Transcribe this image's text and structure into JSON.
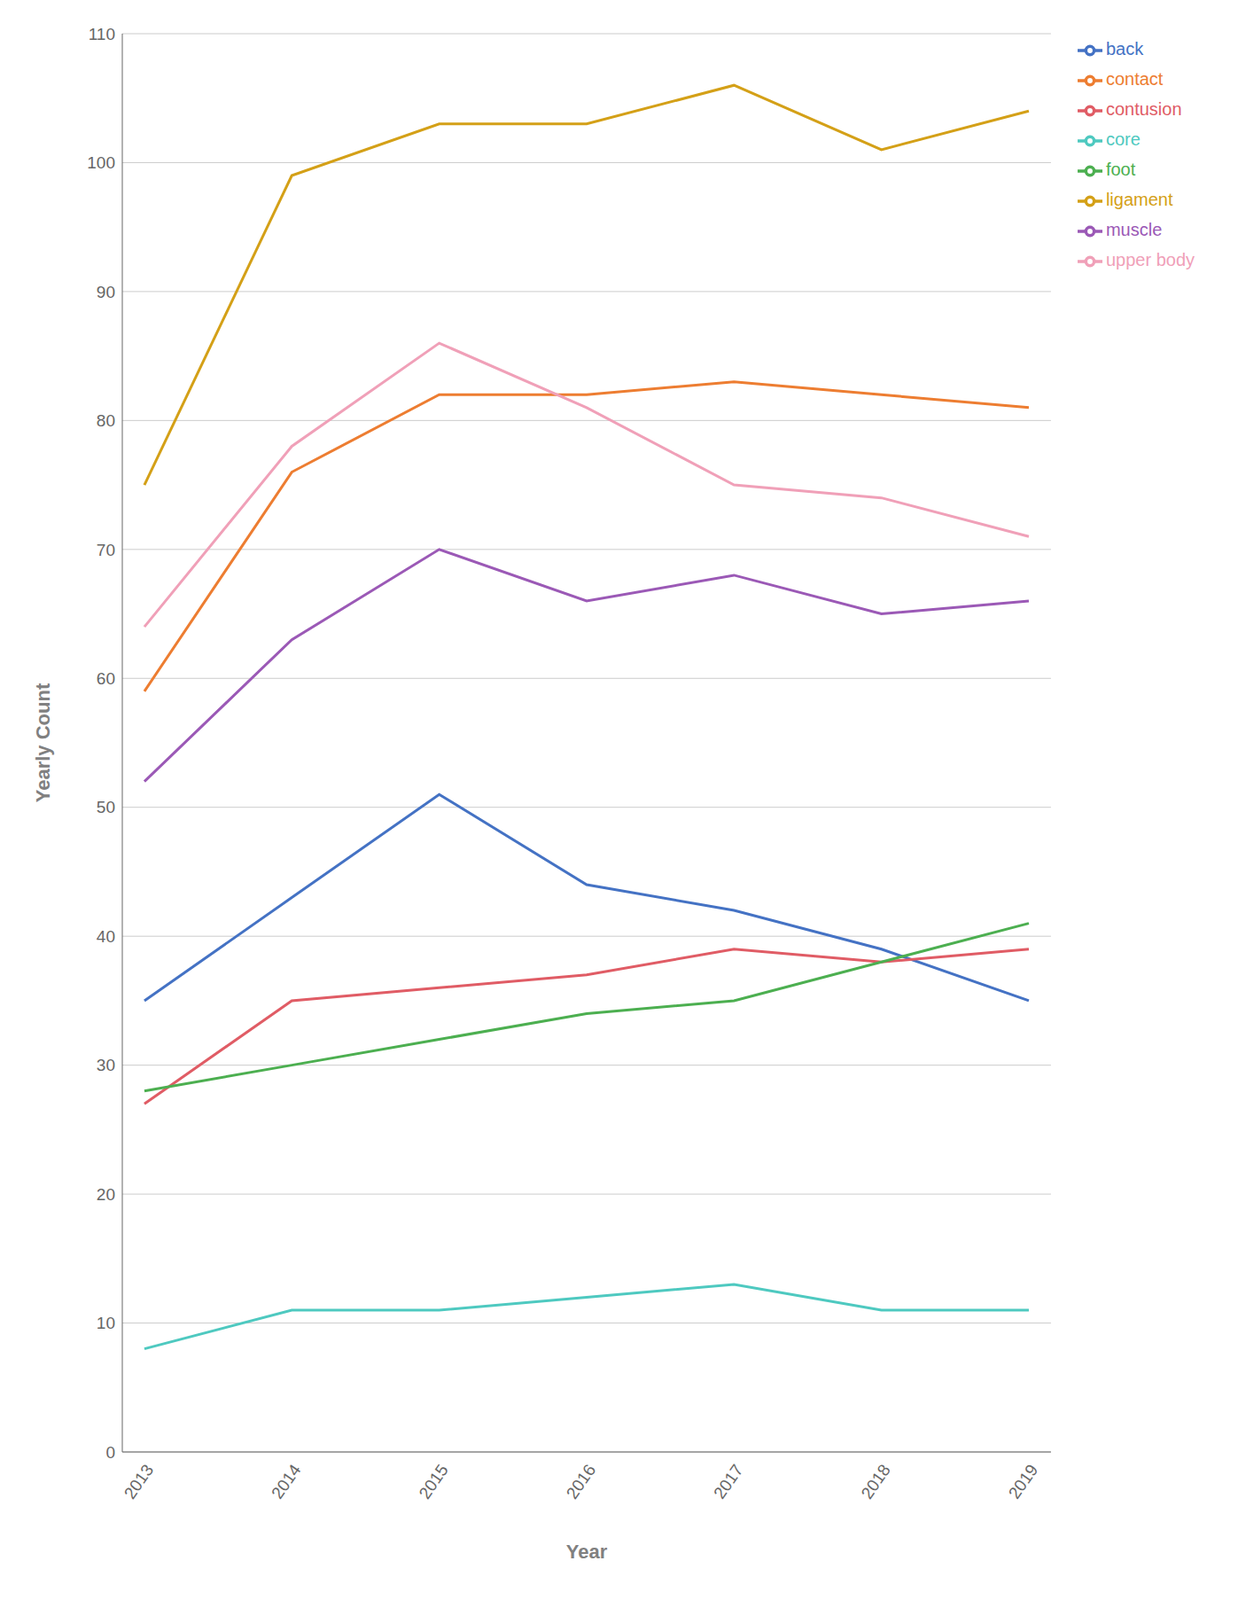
{
  "chart_data": {
    "type": "line",
    "x_label": "Year",
    "y_label": "Yearly Count",
    "x": [
      2013,
      2014,
      2015,
      2016,
      2017,
      2018,
      2019
    ],
    "xlim": [
      2012.85,
      2019.15
    ],
    "xticks": [
      2013,
      2014,
      2015,
      2016,
      2017,
      2018,
      2019
    ],
    "ylim": [
      0,
      110
    ],
    "yticks": [
      0,
      10,
      20,
      30,
      40,
      50,
      60,
      70,
      80,
      90,
      100,
      110
    ],
    "grid": true,
    "legend": "right",
    "series": [
      {
        "name": "back",
        "color": "#4472c4",
        "values": [
          35,
          43,
          51,
          44,
          42,
          39,
          35
        ]
      },
      {
        "name": "contact",
        "color": "#ed7d31",
        "values": [
          59,
          76,
          82,
          82,
          83,
          82,
          81
        ]
      },
      {
        "name": "contusion",
        "color": "#e05c65",
        "values": [
          27,
          35,
          36,
          37,
          39,
          38,
          39
        ]
      },
      {
        "name": "core",
        "color": "#4ec9c0",
        "values": [
          8,
          11,
          11,
          12,
          13,
          11,
          11
        ]
      },
      {
        "name": "foot",
        "color": "#4caf50",
        "values": [
          28,
          30,
          32,
          34,
          35,
          38,
          41
        ]
      },
      {
        "name": "ligament",
        "color": "#d4a017",
        "values": [
          75,
          99,
          103,
          103,
          106,
          101,
          104
        ]
      },
      {
        "name": "muscle",
        "color": "#9b59b6",
        "values": [
          52,
          63,
          70,
          66,
          68,
          65,
          66
        ]
      },
      {
        "name": "upper body",
        "color": "#f0a0b8",
        "values": [
          64,
          78,
          86,
          81,
          75,
          74,
          71
        ]
      }
    ]
  }
}
